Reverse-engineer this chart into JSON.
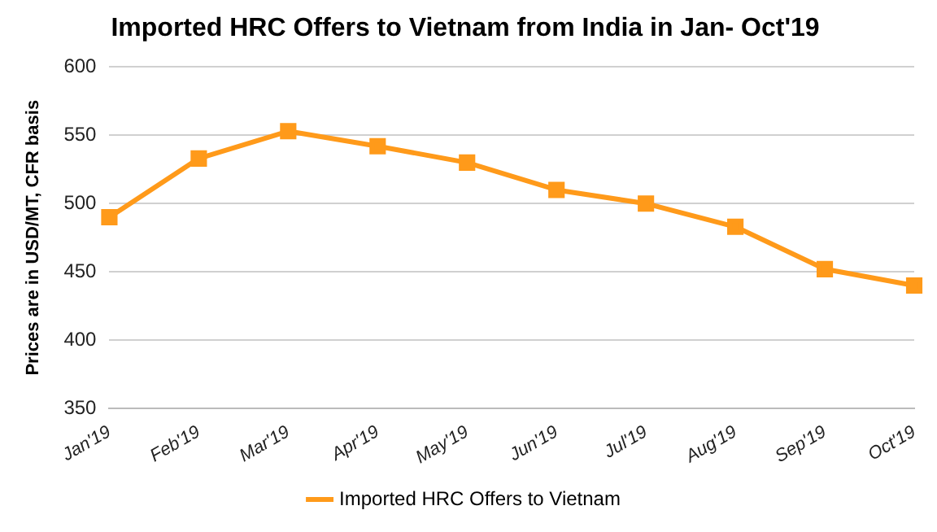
{
  "chart_data": {
    "type": "line",
    "title": "Imported HRC Offers to Vietnam from India in Jan- Oct'19",
    "ylabel": "Prices are in USD/MT, CFR basis",
    "categories": [
      "Jan'19",
      "Feb'19",
      "Mar'19",
      "Apr'19",
      "May'19",
      "Jun'19",
      "Jul'19",
      "Aug'19",
      "Sep'19",
      "Oct'19"
    ],
    "series": [
      {
        "name": "Imported HRC Offers to Vietnam",
        "color": "#ff9a1a",
        "values": [
          490,
          533,
          553,
          542,
          530,
          510,
          500,
          483,
          452,
          440
        ]
      }
    ],
    "ylim": [
      350,
      600
    ],
    "yticks": [
      350,
      400,
      450,
      500,
      550,
      600
    ],
    "grid": "y",
    "legend": "bottom",
    "marker": "square",
    "line_style": "solid"
  }
}
